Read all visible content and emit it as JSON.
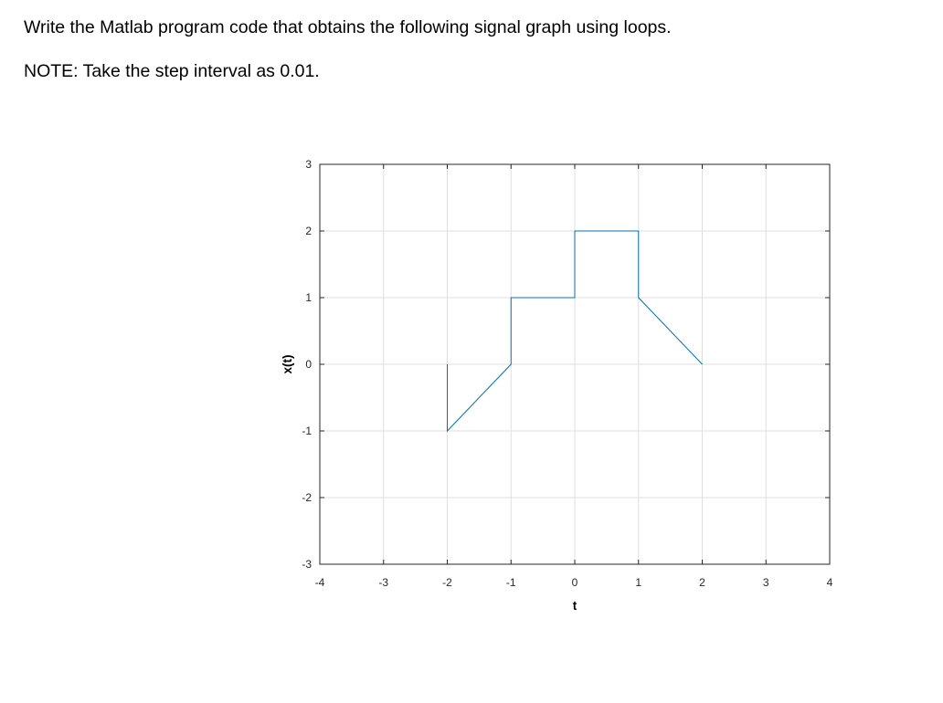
{
  "question": {
    "line1": "Write the Matlab program code that obtains the following signal graph using loops.",
    "line2": "NOTE: Take the step interval as 0.01."
  },
  "chart_data": {
    "type": "line",
    "title": "",
    "xlabel": "t",
    "ylabel": "x(t)",
    "xlim": [
      -4,
      4
    ],
    "ylim": [
      -3,
      3
    ],
    "xticks": [
      -4,
      -3,
      -2,
      -1,
      0,
      1,
      2,
      3,
      4
    ],
    "yticks": [
      -3,
      -2,
      -1,
      0,
      1,
      2,
      3
    ],
    "grid": true,
    "line_color": "#0072BD",
    "series": [
      {
        "x": [
          -2,
          -2,
          -1,
          -1,
          0,
          0,
          1,
          1,
          2
        ],
        "y": [
          0,
          -1,
          0,
          1,
          1,
          2,
          2,
          1,
          0
        ]
      }
    ]
  }
}
